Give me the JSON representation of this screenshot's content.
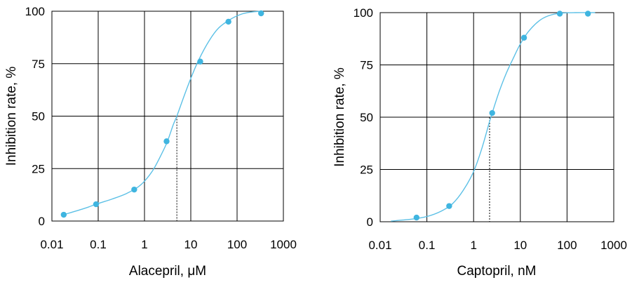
{
  "chart_data": [
    {
      "type": "scatter",
      "xscale": "log",
      "xlabel": "Alacepril, μM",
      "ylabel": "Inhibition rate, %",
      "xlim": [
        0.01,
        1000
      ],
      "ylim": [
        0,
        100
      ],
      "x_tick_labels": [
        "0.01",
        "0.1",
        "1",
        "10",
        "100",
        "1000"
      ],
      "y_tick_labels": [
        "0",
        "25",
        "50",
        "75",
        "100"
      ],
      "x_ticks": [
        0.01,
        0.1,
        1,
        10,
        100,
        1000
      ],
      "y_ticks": [
        0,
        25,
        50,
        75,
        100
      ],
      "grid": true,
      "marker_color": "#3fb5e0",
      "curve_color": "#5cc0e6",
      "points": [
        {
          "x": 0.018,
          "y": 3
        },
        {
          "x": 0.09,
          "y": 8
        },
        {
          "x": 0.6,
          "y": 15
        },
        {
          "x": 3,
          "y": 38
        },
        {
          "x": 16,
          "y": 76
        },
        {
          "x": 65,
          "y": 95
        },
        {
          "x": 330,
          "y": 99
        }
      ],
      "fit_curve": [
        {
          "x": 0.018,
          "y": 3
        },
        {
          "x": 0.05,
          "y": 6
        },
        {
          "x": 0.09,
          "y": 8
        },
        {
          "x": 0.2,
          "y": 10.5
        },
        {
          "x": 0.4,
          "y": 13
        },
        {
          "x": 0.7,
          "y": 16
        },
        {
          "x": 1,
          "y": 19
        },
        {
          "x": 1.5,
          "y": 24
        },
        {
          "x": 2,
          "y": 29
        },
        {
          "x": 3,
          "y": 37
        },
        {
          "x": 4.2,
          "y": 46
        },
        {
          "x": 5,
          "y": 50
        },
        {
          "x": 7,
          "y": 59
        },
        {
          "x": 10,
          "y": 68
        },
        {
          "x": 15,
          "y": 77
        },
        {
          "x": 25,
          "y": 86
        },
        {
          "x": 40,
          "y": 92
        },
        {
          "x": 70,
          "y": 96
        },
        {
          "x": 120,
          "y": 98.5
        },
        {
          "x": 200,
          "y": 99.6
        },
        {
          "x": 340,
          "y": 100
        }
      ],
      "ic50_marker": {
        "x": 5,
        "y": 50
      }
    },
    {
      "type": "scatter",
      "xscale": "log",
      "xlabel": "Captopril, nM",
      "ylabel": "Inhibition rate, %",
      "xlim": [
        0.01,
        1000
      ],
      "ylim": [
        0,
        100
      ],
      "x_tick_labels": [
        "0.01",
        "0.1",
        "1",
        "10",
        "100",
        "1000"
      ],
      "y_tick_labels": [
        "0",
        "25",
        "50",
        "75",
        "100"
      ],
      "x_ticks": [
        0.01,
        0.1,
        1,
        10,
        100,
        1000
      ],
      "y_ticks": [
        0,
        25,
        50,
        75,
        100
      ],
      "grid": true,
      "marker_color": "#3fb5e0",
      "curve_color": "#5cc0e6",
      "points": [
        {
          "x": 0.06,
          "y": 2
        },
        {
          "x": 0.3,
          "y": 7.5
        },
        {
          "x": 2.5,
          "y": 52
        },
        {
          "x": 12,
          "y": 88
        },
        {
          "x": 70,
          "y": 99.5
        },
        {
          "x": 280,
          "y": 99.5
        }
      ],
      "fit_curve": [
        {
          "x": 0.017,
          "y": 0.3
        },
        {
          "x": 0.05,
          "y": 1.3
        },
        {
          "x": 0.1,
          "y": 2.5
        },
        {
          "x": 0.2,
          "y": 5
        },
        {
          "x": 0.35,
          "y": 8.5
        },
        {
          "x": 0.6,
          "y": 15
        },
        {
          "x": 1,
          "y": 24
        },
        {
          "x": 1.5,
          "y": 35
        },
        {
          "x": 2.2,
          "y": 48
        },
        {
          "x": 2.5,
          "y": 52
        },
        {
          "x": 3.5,
          "y": 62
        },
        {
          "x": 5,
          "y": 71
        },
        {
          "x": 7,
          "y": 78
        },
        {
          "x": 10,
          "y": 85
        },
        {
          "x": 15,
          "y": 91
        },
        {
          "x": 25,
          "y": 96
        },
        {
          "x": 40,
          "y": 98.5
        },
        {
          "x": 70,
          "y": 99.7
        },
        {
          "x": 150,
          "y": 100
        },
        {
          "x": 400,
          "y": 100
        }
      ],
      "ic50_marker": {
        "x": 2.2,
        "y": 50
      }
    }
  ]
}
